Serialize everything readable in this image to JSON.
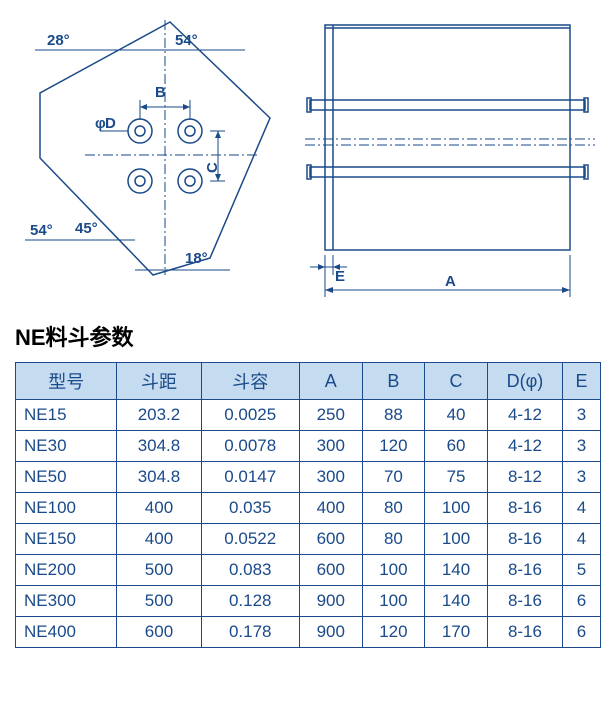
{
  "title": "NE料斗参数",
  "diagram_left": {
    "angles": {
      "top_left": "28°",
      "top_right": "54°",
      "bottom_left_outer": "54°",
      "bottom_left_inner": "45°",
      "bottom_right": "18°"
    },
    "labels": {
      "B": "B",
      "C": "C",
      "D": "D",
      "phi": "φ"
    }
  },
  "diagram_right": {
    "labels": {
      "A": "A",
      "E": "E"
    }
  },
  "table": {
    "headers": [
      "型号",
      "斗距",
      "斗容",
      "A",
      "B",
      "C",
      "D(φ)",
      "E"
    ],
    "rows": [
      [
        "NE15",
        "203.2",
        "0.0025",
        "250",
        "88",
        "40",
        "4-12",
        "3"
      ],
      [
        "NE30",
        "304.8",
        "0.0078",
        "300",
        "120",
        "60",
        "4-12",
        "3"
      ],
      [
        "NE50",
        "304.8",
        "0.0147",
        "300",
        "70",
        "75",
        "8-12",
        "3"
      ],
      [
        "NE100",
        "400",
        "0.035",
        "400",
        "80",
        "100",
        "8-16",
        "4"
      ],
      [
        "NE150",
        "400",
        "0.0522",
        "600",
        "80",
        "100",
        "8-16",
        "4"
      ],
      [
        "NE200",
        "500",
        "0.083",
        "600",
        "100",
        "140",
        "8-16",
        "5"
      ],
      [
        "NE300",
        "500",
        "0.128",
        "900",
        "100",
        "140",
        "8-16",
        "6"
      ],
      [
        "NE400",
        "600",
        "0.178",
        "900",
        "120",
        "170",
        "8-16",
        "6"
      ]
    ]
  },
  "colors": {
    "border": "#1a4a8a",
    "header_bg": "#c5dcf0"
  }
}
